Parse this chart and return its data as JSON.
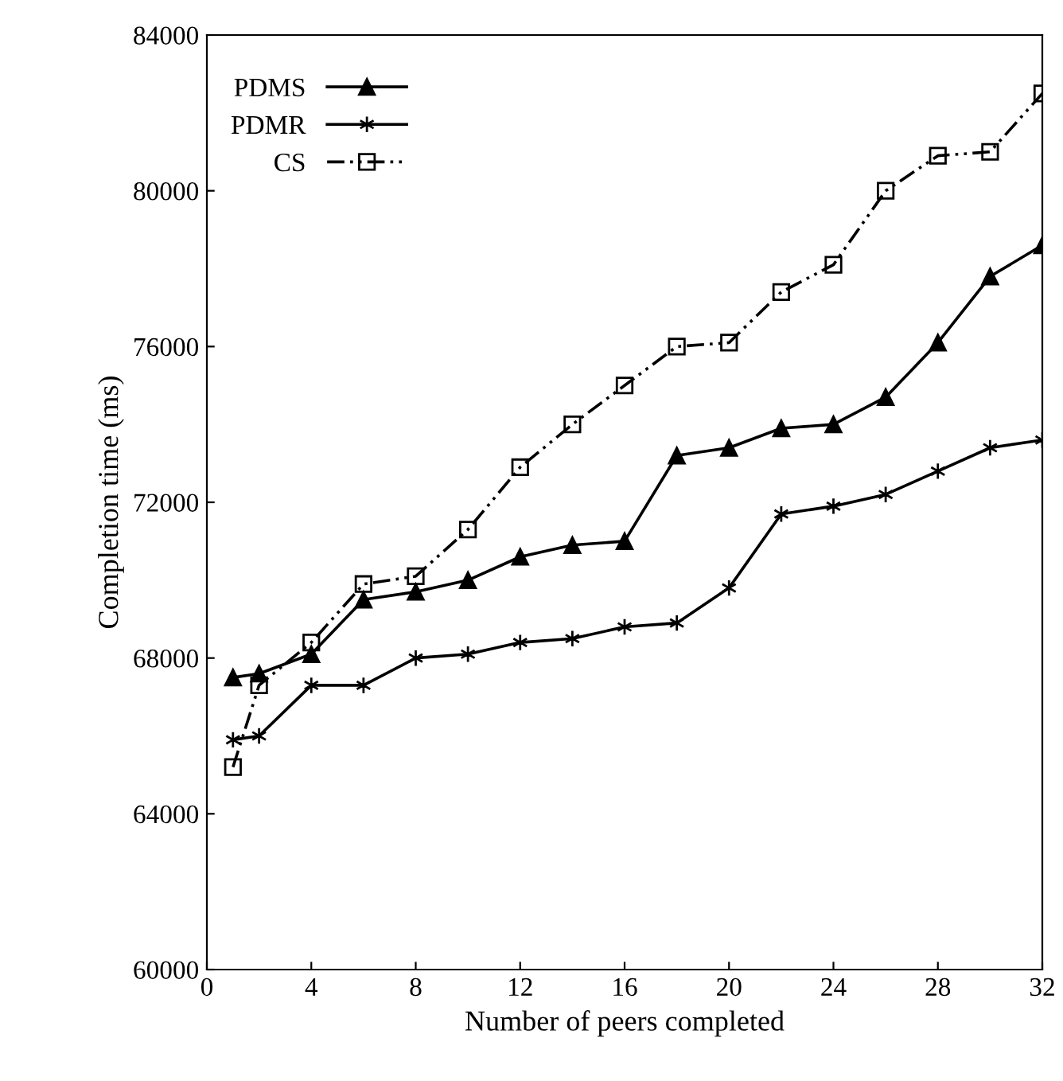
{
  "chart_data": {
    "type": "line",
    "xlabel": "Number of peers completed",
    "ylabel": "Completion time (ms)",
    "x": [
      1,
      2,
      4,
      6,
      8,
      10,
      12,
      14,
      16,
      18,
      20,
      22,
      24,
      26,
      28,
      30,
      32
    ],
    "series": [
      {
        "name": "PDMS",
        "color": "#000000",
        "marker": "triangle",
        "line_style": "solid",
        "values": [
          67500,
          67600,
          68100,
          69500,
          69700,
          70000,
          70600,
          70900,
          71000,
          73200,
          73400,
          73900,
          74000,
          74700,
          76100,
          77800,
          78600
        ]
      },
      {
        "name": "PDMR",
        "color": "#000000",
        "marker": "cross",
        "line_style": "solid",
        "values": [
          65900,
          66000,
          67300,
          67300,
          68000,
          68100,
          68400,
          68500,
          68800,
          68900,
          69800,
          71700,
          71900,
          72200,
          72800,
          73400,
          73600
        ]
      },
      {
        "name": "CS",
        "color": "#000000",
        "marker": "square",
        "line_style": "dashed",
        "values": [
          65200,
          67300,
          68400,
          69900,
          70100,
          71300,
          72900,
          74000,
          75000,
          76000,
          76100,
          77400,
          78100,
          80000,
          80900,
          81000,
          82500
        ]
      }
    ],
    "xlim": [
      0,
      32
    ],
    "xticks": [
      0,
      4,
      8,
      12,
      16,
      20,
      24,
      28,
      32
    ],
    "ylim": [
      60000,
      84000
    ],
    "yticks": [
      60000,
      64000,
      68000,
      72000,
      76000,
      80000,
      84000
    ],
    "grid": false,
    "legend": "top left"
  }
}
